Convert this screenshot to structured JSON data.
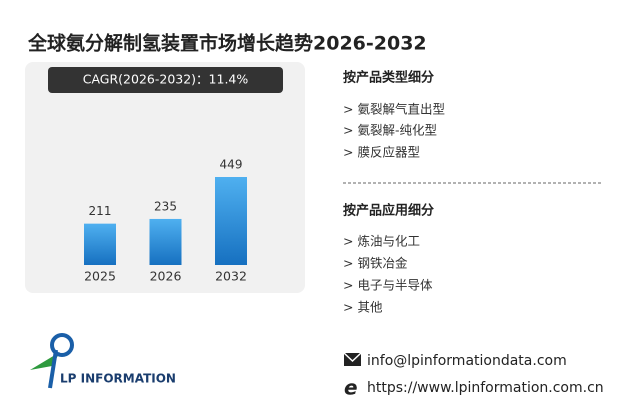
{
  "title": "全球氨分解制氢装置市场增长趋势2026-2032",
  "cagr": "CAGR(2026-2032)：11.4%",
  "chart_data": {
    "type": "bar",
    "categories": [
      "2025",
      "2026",
      "2032"
    ],
    "values": [
      211,
      235,
      449
    ],
    "color": "#1e88d8"
  },
  "sections": [
    {
      "title": "按产品类型细分",
      "items": [
        "> 氨裂解气直出型",
        "> 氨裂解-纯化型",
        "> 膜反应器型"
      ]
    },
    {
      "title": "按产品应用细分",
      "items": [
        "> 炼油与化工",
        "> 钢铁冶金",
        "> 电子与半导体",
        "> 其他"
      ]
    }
  ],
  "contact": {
    "email": "info@lpinformationdata.com",
    "website": "https://www.lpinformation.com.cn"
  },
  "logo": "LP INFORMATION"
}
